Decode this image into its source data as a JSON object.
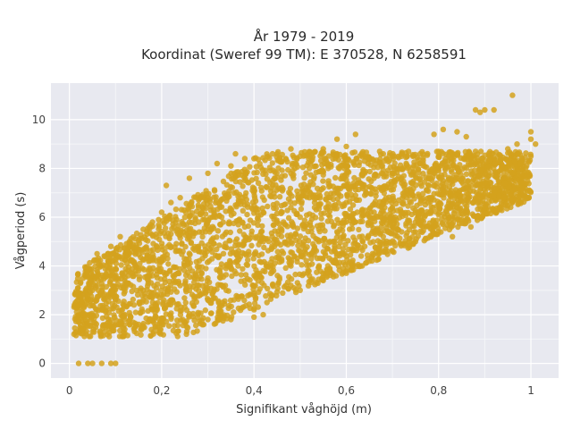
{
  "chart_data": {
    "type": "scatter",
    "title_lines": [
      "År 1979 - 2019",
      "Koordinat (Sweref 99 TM): E 370528, N 6258591"
    ],
    "xlabel": "Signifikant våghöjd (m)",
    "ylabel": "Vågperiod (s)",
    "xlim": [
      -0.04,
      1.06
    ],
    "ylim": [
      -0.6,
      11.5
    ],
    "x_ticks": [
      {
        "value": 0,
        "label": "0"
      },
      {
        "value": 0.2,
        "label": "0,2"
      },
      {
        "value": 0.4,
        "label": "0,4"
      },
      {
        "value": 0.6,
        "label": "0,6"
      },
      {
        "value": 0.8,
        "label": "0,8"
      },
      {
        "value": 1.0,
        "label": "1"
      }
    ],
    "y_ticks": [
      {
        "value": 0,
        "label": "0"
      },
      {
        "value": 2,
        "label": "2"
      },
      {
        "value": 4,
        "label": "4"
      },
      {
        "value": 6,
        "label": "6"
      },
      {
        "value": 8,
        "label": "8"
      },
      {
        "value": 10,
        "label": "10"
      }
    ],
    "grid": true,
    "marker_color": "#D4A21D",
    "plot_background": "#E8E9F0",
    "points": [
      [
        0.02,
        0
      ],
      [
        0.04,
        0
      ],
      [
        0.05,
        0
      ],
      [
        0.07,
        0
      ],
      [
        0.09,
        0
      ],
      [
        0.1,
        0
      ],
      [
        0.01,
        1.2
      ],
      [
        0.03,
        1.4
      ],
      [
        0.05,
        1.3
      ],
      [
        0.08,
        1.5
      ],
      [
        0.12,
        1.4
      ],
      [
        0.15,
        1.6
      ],
      [
        0.2,
        1.7
      ],
      [
        0.25,
        1.7
      ],
      [
        0.3,
        1.8
      ],
      [
        0.35,
        1.8
      ],
      [
        0.4,
        1.9
      ],
      [
        0.42,
        2.0
      ],
      [
        0.02,
        2.4
      ],
      [
        0.04,
        2.8
      ],
      [
        0.06,
        3.2
      ],
      [
        0.03,
        3.5
      ],
      [
        0.05,
        3.0
      ],
      [
        0.07,
        2.2
      ],
      [
        0.1,
        2.6
      ],
      [
        0.12,
        3.4
      ],
      [
        0.15,
        3.8
      ],
      [
        0.08,
        4.0
      ],
      [
        0.06,
        4.5
      ],
      [
        0.09,
        4.8
      ],
      [
        0.11,
        5.2
      ],
      [
        0.13,
        5.0
      ],
      [
        0.16,
        5.5
      ],
      [
        0.18,
        5.8
      ],
      [
        0.2,
        6.2
      ],
      [
        0.22,
        6.6
      ],
      [
        0.21,
        7.3
      ],
      [
        0.18,
        2.2
      ],
      [
        0.22,
        2.6
      ],
      [
        0.26,
        3.0
      ],
      [
        0.3,
        3.5
      ],
      [
        0.34,
        4.0
      ],
      [
        0.38,
        4.5
      ],
      [
        0.42,
        5.0
      ],
      [
        0.46,
        5.5
      ],
      [
        0.5,
        6.0
      ],
      [
        0.54,
        6.5
      ],
      [
        0.58,
        7.0
      ],
      [
        0.62,
        7.3
      ],
      [
        0.66,
        7.6
      ],
      [
        0.7,
        7.8
      ],
      [
        0.25,
        4.0
      ],
      [
        0.28,
        4.8
      ],
      [
        0.3,
        5.5
      ],
      [
        0.33,
        6.0
      ],
      [
        0.36,
        6.5
      ],
      [
        0.4,
        7.0
      ],
      [
        0.44,
        7.5
      ],
      [
        0.48,
        7.8
      ],
      [
        0.52,
        8.0
      ],
      [
        0.56,
        8.2
      ],
      [
        0.6,
        8.4
      ],
      [
        0.64,
        8.5
      ],
      [
        0.68,
        8.6
      ],
      [
        0.72,
        8.6
      ],
      [
        0.76,
        8.6
      ],
      [
        0.8,
        8.7
      ],
      [
        0.84,
        8.6
      ],
      [
        0.88,
        8.7
      ],
      [
        0.35,
        8.1
      ],
      [
        0.38,
        8.4
      ],
      [
        0.45,
        8.6
      ],
      [
        0.5,
        8.5
      ],
      [
        0.55,
        8.8
      ],
      [
        0.58,
        9.2
      ],
      [
        0.6,
        8.9
      ],
      [
        0.62,
        9.4
      ],
      [
        0.79,
        9.4
      ],
      [
        0.81,
        9.6
      ],
      [
        0.84,
        9.5
      ],
      [
        0.86,
        9.3
      ],
      [
        0.88,
        10.4
      ],
      [
        0.89,
        10.3
      ],
      [
        0.9,
        10.4
      ],
      [
        0.92,
        10.4
      ],
      [
        0.96,
        11.0
      ],
      [
        0.3,
        2.6
      ],
      [
        0.34,
        3.0
      ],
      [
        0.38,
        3.4
      ],
      [
        0.42,
        3.8
      ],
      [
        0.46,
        4.2
      ],
      [
        0.5,
        4.6
      ],
      [
        0.54,
        5.0
      ],
      [
        0.58,
        5.4
      ],
      [
        0.62,
        5.8
      ],
      [
        0.66,
        6.2
      ],
      [
        0.7,
        6.4
      ],
      [
        0.74,
        6.6
      ],
      [
        0.78,
        6.8
      ],
      [
        0.82,
        7.0
      ],
      [
        0.86,
        7.2
      ],
      [
        0.9,
        7.4
      ],
      [
        0.94,
        7.6
      ],
      [
        0.98,
        8.0
      ],
      [
        1.0,
        8.5
      ],
      [
        1.01,
        9.0
      ],
      [
        0.4,
        2.2
      ],
      [
        0.44,
        2.8
      ],
      [
        0.48,
        3.2
      ],
      [
        0.52,
        3.6
      ],
      [
        0.56,
        4.0
      ],
      [
        0.6,
        4.4
      ],
      [
        0.64,
        4.8
      ],
      [
        0.68,
        5.2
      ],
      [
        0.72,
        5.4
      ],
      [
        0.76,
        5.8
      ],
      [
        0.8,
        6.1
      ],
      [
        0.84,
        6.4
      ],
      [
        0.88,
        6.8
      ],
      [
        0.92,
        7.2
      ],
      [
        0.96,
        7.8
      ],
      [
        0.5,
        3.0
      ],
      [
        0.55,
        3.4
      ],
      [
        0.6,
        3.7
      ],
      [
        0.65,
        4.2
      ],
      [
        0.7,
        4.6
      ],
      [
        0.75,
        5.0
      ],
      [
        0.8,
        5.4
      ],
      [
        0.85,
        5.9
      ],
      [
        0.9,
        6.4
      ],
      [
        0.24,
        6.8
      ],
      [
        0.26,
        7.6
      ],
      [
        0.3,
        7.8
      ],
      [
        0.32,
        8.2
      ],
      [
        0.36,
        8.6
      ],
      [
        0.4,
        8.4
      ],
      [
        0.44,
        8.6
      ],
      [
        0.48,
        8.8
      ],
      [
        0.52,
        8.5
      ],
      [
        0.58,
        8.6
      ],
      [
        0.64,
        8.3
      ],
      [
        0.7,
        8.5
      ],
      [
        0.76,
        8.2
      ],
      [
        0.82,
        8.3
      ],
      [
        0.12,
        2.0
      ],
      [
        0.14,
        2.4
      ],
      [
        0.16,
        3.0
      ],
      [
        0.18,
        3.6
      ],
      [
        0.2,
        4.2
      ],
      [
        0.22,
        4.8
      ],
      [
        0.24,
        5.4
      ],
      [
        0.26,
        5.8
      ],
      [
        0.28,
        6.4
      ],
      [
        0.3,
        6.8
      ],
      [
        0.6,
        6.6
      ],
      [
        0.64,
        6.9
      ],
      [
        0.68,
        7.2
      ],
      [
        0.72,
        7.4
      ],
      [
        0.76,
        7.6
      ],
      [
        0.8,
        7.9
      ],
      [
        0.84,
        8.0
      ],
      [
        0.88,
        8.2
      ],
      [
        0.92,
        8.4
      ],
      [
        0.95,
        8.8
      ],
      [
        0.97,
        9.0
      ],
      [
        1.0,
        9.2
      ],
      [
        1.0,
        9.5
      ],
      [
        0.65,
        6.0
      ],
      [
        0.7,
        5.6
      ],
      [
        0.75,
        5.8
      ],
      [
        0.79,
        5.6
      ],
      [
        0.83,
        5.2
      ],
      [
        0.87,
        5.6
      ],
      [
        0.45,
        5.8
      ],
      [
        0.48,
        6.4
      ],
      [
        0.52,
        6.8
      ],
      [
        0.55,
        7.2
      ],
      [
        0.42,
        6.2
      ],
      [
        0.38,
        5.6
      ],
      [
        0.36,
        5.0
      ],
      [
        0.32,
        4.4
      ],
      [
        0.28,
        3.8
      ],
      [
        0.24,
        3.2
      ],
      [
        0.2,
        2.8
      ],
      [
        0.16,
        2.6
      ]
    ]
  }
}
